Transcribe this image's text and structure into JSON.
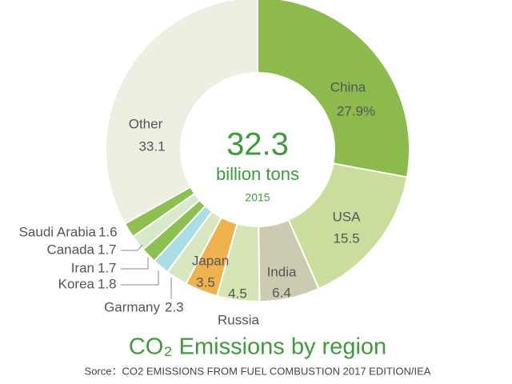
{
  "chart_data": {
    "type": "donut",
    "title": "CO₂ Emissions by region",
    "source": "Sorce：CO2 EMISSIONS FROM FUEL COMBUSTION 2017 EDITION/IEA",
    "center_value": "32.3",
    "center_unit": "billion tons",
    "center_year": "2015",
    "categories": [
      "China",
      "USA",
      "India",
      "Russia",
      "Japan",
      "Garmany",
      "Korea",
      "Iran",
      "Canada",
      "Saudi Arabia",
      "Other"
    ],
    "values": [
      27.9,
      15.5,
      6.4,
      4.5,
      3.5,
      2.3,
      1.8,
      1.7,
      1.7,
      1.6,
      33.1
    ],
    "value_labels": [
      "27.9%",
      "15.5",
      "6.4",
      "4.5",
      "3.5",
      "2.3",
      "1.8",
      "1.7",
      "1.7",
      "1.6",
      "33.1"
    ],
    "colors": [
      "#8cba4c",
      "#c9de9c",
      "#cdcab2",
      "#d5e5b3",
      "#f0b24e",
      "#d9e7c0",
      "#a9dfe3",
      "#8cc152",
      "#d8e9c8",
      "#8cc152",
      "#eeeee3"
    ]
  }
}
